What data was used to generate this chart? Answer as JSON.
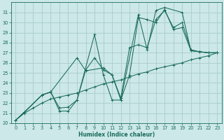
{
  "xlabel": "Humidex (Indice chaleur)",
  "bg_color": "#cce8e8",
  "grid_color": "#aacccc",
  "line_color": "#1a6b5a",
  "xlim": [
    -0.5,
    23.5
  ],
  "ylim": [
    20,
    32
  ],
  "xticks": [
    0,
    1,
    2,
    3,
    4,
    5,
    6,
    7,
    8,
    9,
    10,
    11,
    12,
    13,
    14,
    15,
    16,
    17,
    18,
    19,
    20,
    21,
    22,
    23
  ],
  "yticks": [
    20,
    21,
    22,
    23,
    24,
    25,
    26,
    27,
    28,
    29,
    30,
    31
  ],
  "series": [
    {
      "x": [
        0,
        1,
        3,
        4,
        5,
        6,
        7,
        9,
        10,
        11,
        12,
        14,
        15,
        16,
        17,
        19,
        20,
        21,
        22,
        23
      ],
      "y": [
        20.3,
        21.1,
        22.8,
        23.1,
        21.2,
        21.2,
        22.3,
        28.8,
        24.8,
        22.3,
        22.3,
        30.8,
        27.3,
        31.2,
        31.5,
        31.0,
        27.2,
        27.1,
        27.0,
        27.0
      ]
    },
    {
      "x": [
        0,
        1,
        3,
        4,
        5,
        6,
        7,
        8,
        9,
        10,
        11,
        12,
        13,
        14,
        15,
        16,
        17,
        18,
        19,
        20,
        21,
        22,
        23
      ],
      "y": [
        20.3,
        21.1,
        22.8,
        23.1,
        21.5,
        21.6,
        22.3,
        25.3,
        26.5,
        25.3,
        24.8,
        22.5,
        27.5,
        27.8,
        27.5,
        30.3,
        31.2,
        29.5,
        30.0,
        27.3,
        27.1,
        27.0,
        27.0
      ]
    },
    {
      "x": [
        0,
        1,
        3,
        4,
        7,
        8,
        10,
        11,
        12,
        13,
        14,
        15,
        16,
        17,
        18,
        19,
        20,
        21,
        22,
        23
      ],
      "y": [
        20.3,
        21.1,
        22.8,
        23.1,
        26.5,
        25.2,
        25.5,
        24.8,
        22.3,
        24.8,
        30.5,
        30.3,
        30.0,
        31.3,
        29.3,
        29.5,
        27.2,
        27.1,
        27.0,
        27.0
      ]
    },
    {
      "x": [
        0,
        1,
        2,
        3,
        4,
        5,
        6,
        7,
        8,
        9,
        10,
        11,
        12,
        13,
        14,
        15,
        16,
        17,
        18,
        19,
        20,
        21,
        22,
        23
      ],
      "y": [
        20.3,
        21.0,
        21.5,
        22.0,
        22.4,
        22.6,
        22.8,
        23.0,
        23.3,
        23.6,
        23.9,
        24.1,
        24.3,
        24.6,
        24.9,
        25.1,
        25.4,
        25.6,
        25.8,
        26.0,
        26.3,
        26.5,
        26.7,
        27.0
      ]
    }
  ]
}
